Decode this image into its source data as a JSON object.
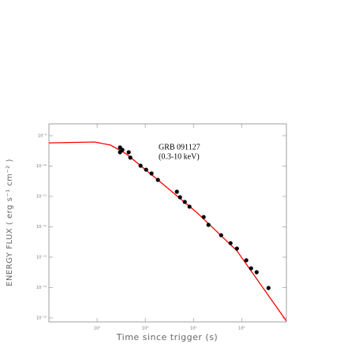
{
  "chart_data": {
    "type": "scatter",
    "annotation": [
      "GRB 091127",
      "(0.3-10 keV)"
    ],
    "xlabel": "Time since trigger (s)",
    "ylabel": "ENERGY FLUX ( erg s⁻¹ cm⁻² )",
    "xlog": true,
    "ylog": true,
    "xlim": [
      100,
      8500000
    ],
    "ylim": [
      7.4e-16,
      2.45e-09
    ],
    "xticks": [
      {
        "value": 1000,
        "label": "10³"
      },
      {
        "value": 10000,
        "label": "10⁴"
      },
      {
        "value": 100000,
        "label": "10⁵"
      },
      {
        "value": 1000000,
        "label": "10⁶"
      }
    ],
    "yticks": [
      {
        "value": 1e-09,
        "label": "10⁻⁹"
      },
      {
        "value": 1e-10,
        "label": "10⁻¹⁰"
      },
      {
        "value": 1e-11,
        "label": "10⁻¹¹"
      },
      {
        "value": 1e-12,
        "label": "10⁻¹²"
      },
      {
        "value": 1e-13,
        "label": "10⁻¹³"
      },
      {
        "value": 1e-14,
        "label": "10⁻¹⁴"
      },
      {
        "value": 1e-15,
        "label": "10⁻¹⁵"
      }
    ],
    "points": {
      "color": "#000000",
      "x": [
        2990,
        2990,
        3350,
        4530,
        4890,
        7980,
        10400,
        13500,
        18300,
        45300,
        52600,
        66100,
        82800,
        163000,
        205000,
        375000,
        589000,
        798000,
        1250000,
        1570000,
        2050000,
        3610000
      ],
      "y": [
        4.1e-10,
        2.85e-10,
        3.4e-10,
        2.85e-10,
        1.9e-10,
        1.03e-10,
        7.6e-11,
        5.7e-11,
        3.5e-11,
        1.43e-11,
        9.4e-12,
        6.6e-12,
        4.6e-12,
        2.1e-12,
        1.16e-12,
        5.3e-13,
        2.9e-13,
        1.93e-13,
        7.9e-14,
        4.3e-14,
        3.2e-14,
        9.7e-15
      ]
    },
    "model": {
      "color": "#ff0000",
      "x": [
        100,
        890,
        1900,
        4050,
        18300,
        121000,
        798000,
        8500000
      ],
      "y": [
        5.8e-10,
        6.2e-10,
        4.9e-10,
        2.5e-10,
        3.5e-11,
        2.85e-12,
        1.62e-13,
        7.9e-16
      ]
    }
  }
}
